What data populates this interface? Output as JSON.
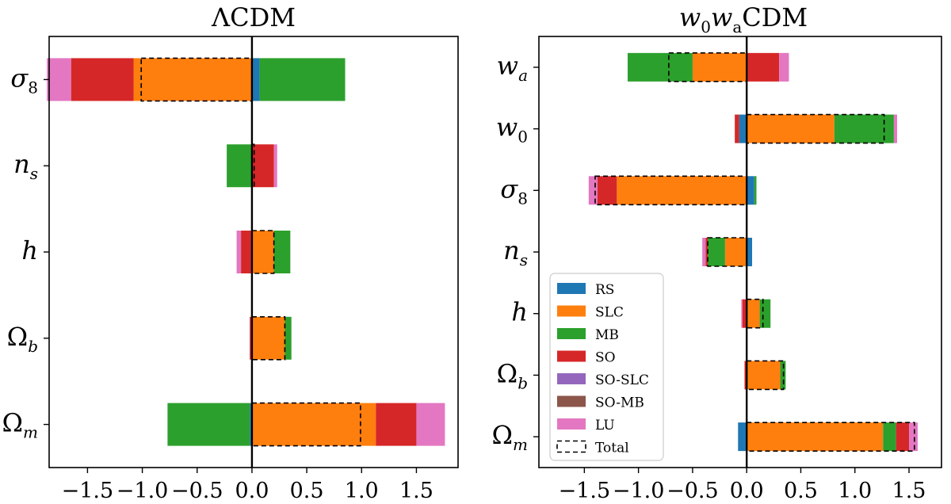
{
  "colors": {
    "RS": "#1f77b4",
    "SLC": "#ff7f0e",
    "MB": "#2ca02c",
    "SO": "#d62728",
    "SO-SLC": "#9467bd",
    "SO-MB": "#8c564b",
    "LU": "#e377c2",
    "Total": "#000000"
  },
  "legend": {
    "entries": [
      "RS",
      "SLC",
      "MB",
      "SO",
      "SO-SLC",
      "SO-MB",
      "LU",
      "Total"
    ]
  },
  "chart_data": [
    {
      "type": "bar",
      "orientation": "horizontal-stacked",
      "title": "ΛCDM",
      "xlim": [
        -1.85,
        1.88
      ],
      "xticks": [
        -1.5,
        -1.0,
        -0.5,
        0.0,
        0.5,
        1.0,
        1.5
      ],
      "xtick_labels": [
        "−1.5",
        "−1.0",
        "−0.5",
        "0.0",
        "0.5",
        "1.0",
        "1.5"
      ],
      "categories": [
        {
          "label": "σ",
          "sub": "8"
        },
        {
          "label": "n",
          "sub": "s"
        },
        {
          "label": "h",
          "sub": ""
        },
        {
          "label": "Ω",
          "sub": "b"
        },
        {
          "label": "Ω",
          "sub": "m"
        }
      ],
      "series": [
        {
          "name": "RS",
          "values": [
            0.07,
            0.0,
            0.0,
            0.0,
            -0.02
          ]
        },
        {
          "name": "SLC",
          "values": [
            -1.08,
            0.0,
            0.2,
            0.3,
            1.13
          ]
        },
        {
          "name": "MB",
          "values": [
            0.78,
            -0.23,
            0.15,
            0.06,
            -0.75
          ]
        },
        {
          "name": "SO",
          "values": [
            -0.57,
            0.2,
            -0.1,
            -0.02,
            0.37
          ]
        },
        {
          "name": "LU",
          "values": [
            -0.22,
            0.03,
            -0.04,
            0.0,
            0.26
          ]
        }
      ],
      "total": [
        [
          -1.01,
          0.0
        ],
        [
          0.0,
          0.02
        ],
        [
          0.0,
          0.2
        ],
        [
          0.0,
          0.3
        ],
        [
          0.0,
          0.99
        ]
      ]
    },
    {
      "type": "bar",
      "orientation": "horizontal-stacked",
      "title_math": "w",
      "title_sub1": "0",
      "title_w2": "w",
      "title_sub2": "a",
      "title_rest": "CDM",
      "xlim": [
        -1.92,
        1.8
      ],
      "xticks": [
        -1.5,
        -1.0,
        -0.5,
        0.0,
        0.5,
        1.0,
        1.5
      ],
      "xtick_labels": [
        "−1.5",
        "−1.0",
        "−0.5",
        "0.0",
        "0.5",
        "1.0",
        "1.5"
      ],
      "categories": [
        {
          "label": "w",
          "sub": "a"
        },
        {
          "label": "w",
          "sub": "0"
        },
        {
          "label": "σ",
          "sub": "8"
        },
        {
          "label": "n",
          "sub": "s"
        },
        {
          "label": "h",
          "sub": ""
        },
        {
          "label": "Ω",
          "sub": "b"
        },
        {
          "label": "Ω",
          "sub": "m"
        }
      ],
      "series": [
        {
          "name": "RS",
          "values": [
            0.0,
            -0.07,
            0.07,
            0.05,
            0.0,
            0.0,
            -0.08
          ]
        },
        {
          "name": "SLC",
          "values": [
            -0.5,
            0.81,
            -1.2,
            -0.2,
            0.12,
            0.31,
            1.26
          ]
        },
        {
          "name": "MB",
          "values": [
            -0.6,
            0.55,
            0.02,
            -0.16,
            0.1,
            0.05,
            0.12
          ]
        },
        {
          "name": "SO",
          "values": [
            0.3,
            -0.04,
            -0.18,
            -0.02,
            -0.04,
            -0.02,
            0.12
          ]
        },
        {
          "name": "LU",
          "values": [
            0.09,
            0.03,
            -0.08,
            -0.03,
            -0.01,
            0.0,
            0.08
          ]
        }
      ],
      "total": [
        [
          -0.72,
          0.0
        ],
        [
          0.0,
          1.27
        ],
        [
          -1.4,
          0.0
        ],
        [
          -0.36,
          0.0
        ],
        [
          0.0,
          0.15
        ],
        [
          0.0,
          0.34
        ],
        [
          0.0,
          1.55
        ]
      ]
    }
  ]
}
